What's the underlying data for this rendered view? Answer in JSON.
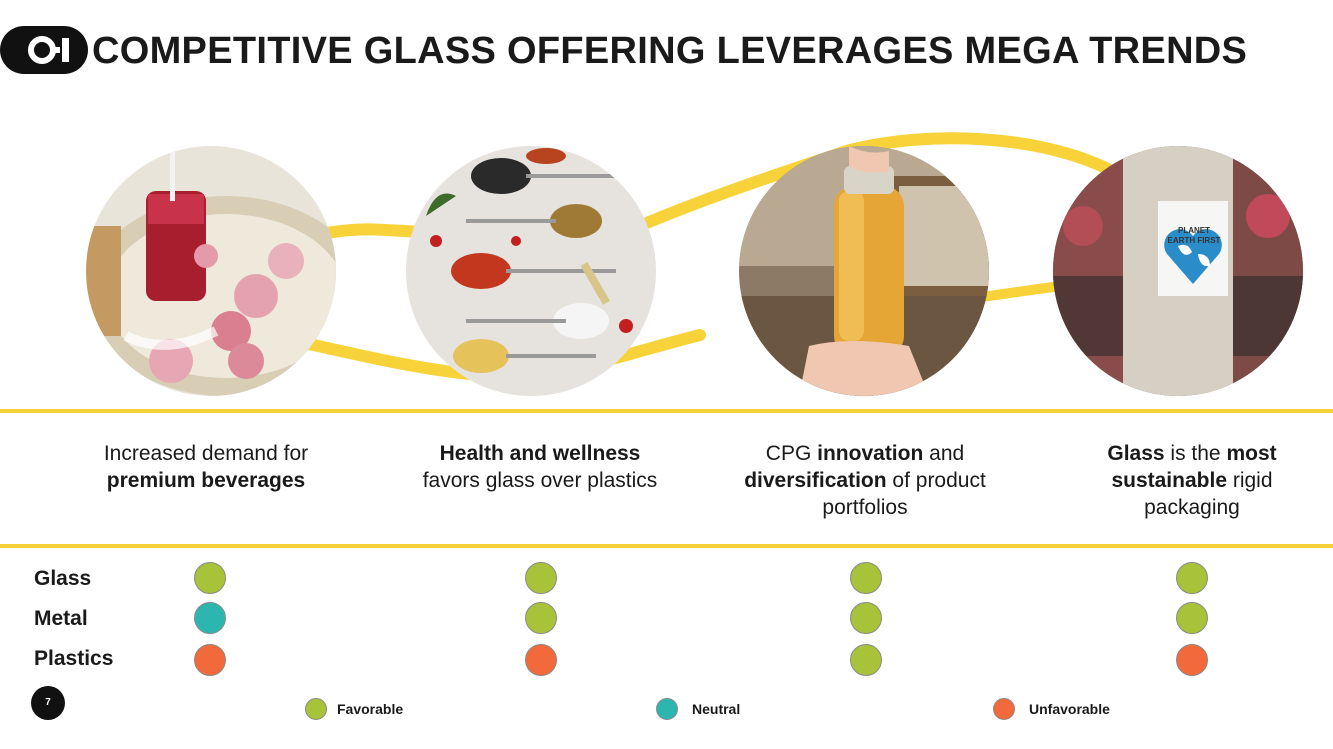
{
  "header": {
    "logo_text": "O-I",
    "title": "COMPETITIVE GLASS OFFERING LEVERAGES MEGA TRENDS"
  },
  "colors": {
    "accent_yellow": "#f7d339",
    "favorable": "#a8c23a",
    "neutral": "#2db5b0",
    "unfavorable": "#f26a3b"
  },
  "photos": {
    "poster_line1": "PLANET",
    "poster_line2": "EARTH FIRST"
  },
  "trends": [
    {
      "pre": "Increased demand for ",
      "bold1": "premium beverages",
      "mid": "",
      "bold2": "",
      "post": ""
    },
    {
      "pre": "",
      "bold1": "Health and wellness",
      "mid": " favors glass over plastics",
      "bold2": "",
      "post": ""
    },
    {
      "pre": "CPG ",
      "bold1": "innovation",
      "mid": " and ",
      "bold2": "diversification",
      "post": " of product portfolios"
    },
    {
      "pre": "",
      "bold1": "Glass",
      "mid": " is the ",
      "bold2": "most sustainable",
      "post": " rigid packaging"
    }
  ],
  "materials": [
    "Glass",
    "Metal",
    "Plastics"
  ],
  "ratings": [
    [
      "favorable",
      "neutral",
      "unfavorable"
    ],
    [
      "favorable",
      "favorable",
      "unfavorable"
    ],
    [
      "favorable",
      "favorable",
      "favorable"
    ],
    [
      "favorable",
      "favorable",
      "unfavorable"
    ]
  ],
  "legend": {
    "favorable": "Favorable",
    "neutral": "Neutral",
    "unfavorable": "Unfavorable"
  },
  "page_number": "7"
}
